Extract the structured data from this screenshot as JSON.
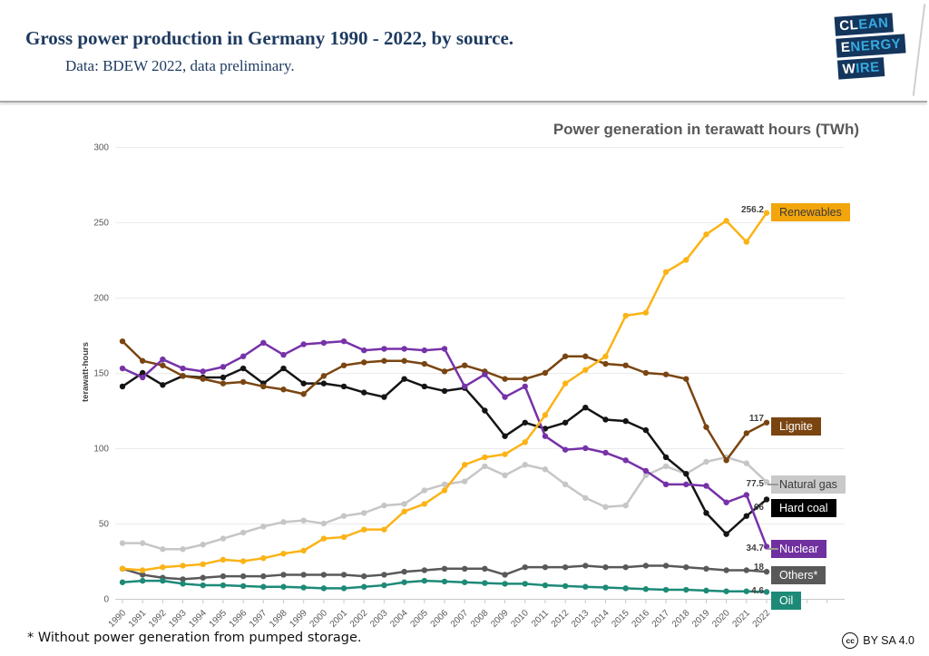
{
  "header": {
    "title": "Gross power production in Germany 1990 - 2022, by source.",
    "subtitle": "Data: BDEW 2022, data preliminary."
  },
  "logo": {
    "bg_color": "#14355c",
    "accent_color": "#35aadf",
    "lines": [
      {
        "strong": "CL",
        "accent": "EAN"
      },
      {
        "strong": "E",
        "accent": "NERGY"
      },
      {
        "strong": "W",
        "accent": "IRE"
      }
    ]
  },
  "chart_data": {
    "type": "line",
    "title": "Power generation in terawatt hours (TWh)",
    "ylabel": "terawatt-hours",
    "ylim": [
      0,
      300
    ],
    "yticks": [
      0,
      50,
      100,
      150,
      200,
      250,
      300
    ],
    "grid": true,
    "legend_position": "right",
    "x": [
      1990,
      1991,
      1992,
      1993,
      1994,
      1995,
      1996,
      1997,
      1998,
      1999,
      2000,
      2001,
      2002,
      2003,
      2004,
      2005,
      2006,
      2007,
      2008,
      2009,
      2010,
      2011,
      2012,
      2013,
      2014,
      2015,
      2016,
      2017,
      2018,
      2019,
      2020,
      2021,
      2022
    ],
    "series": [
      {
        "name": "Renewables",
        "color": "#fbb316",
        "box_color": "#f2a50c",
        "text_color": "#3a3a3a",
        "end_label": "256.2",
        "values": [
          20,
          19,
          21,
          22,
          23,
          26,
          25,
          27,
          30,
          32,
          40,
          41,
          46,
          46,
          58,
          63,
          72,
          89,
          94,
          96,
          104,
          122,
          143,
          152,
          161,
          188,
          190,
          217,
          225,
          242,
          251,
          237,
          256.2
        ]
      },
      {
        "name": "Lignite",
        "color": "#7a4511",
        "box_color": "#7a4511",
        "text_color": "#ffffff",
        "end_label": "117",
        "values": [
          171,
          158,
          155,
          148,
          146,
          143,
          144,
          141,
          139,
          136,
          148,
          155,
          157,
          158,
          158,
          156,
          151,
          155,
          151,
          146,
          146,
          150,
          161,
          161,
          156,
          155,
          150,
          149,
          146,
          114,
          92,
          110,
          117
        ]
      },
      {
        "name": "Natural gas",
        "color": "#c6c6c6",
        "box_color": "#c9c9c9",
        "text_color": "#3a3a3a",
        "end_label": "77.5",
        "values": [
          37,
          37,
          33,
          33,
          36,
          40,
          44,
          48,
          51,
          52,
          50,
          55,
          57,
          62,
          63,
          72,
          76,
          78,
          88,
          82,
          89,
          86,
          76,
          67,
          61,
          62,
          82,
          88,
          83,
          91,
          94,
          90,
          77.5
        ]
      },
      {
        "name": "Hard coal",
        "color": "#141414",
        "box_color": "#000000",
        "text_color": "#ffffff",
        "end_label": "66",
        "values": [
          141,
          150,
          142,
          148,
          147,
          147,
          153,
          143,
          153,
          143,
          143,
          141,
          137,
          134,
          146,
          141,
          138,
          140,
          125,
          108,
          117,
          113,
          117,
          127,
          119,
          118,
          112,
          94,
          83,
          57,
          43,
          55,
          66
        ]
      },
      {
        "name": "Nuclear",
        "color": "#7632a8",
        "box_color": "#7030a0",
        "text_color": "#ffffff",
        "end_label": "34.7",
        "values": [
          153,
          147,
          159,
          153,
          151,
          154,
          161,
          170,
          162,
          169,
          170,
          171,
          165,
          166,
          166,
          165,
          166,
          141,
          149,
          134,
          141,
          108,
          99,
          100,
          97,
          92,
          85,
          76,
          76,
          75,
          64,
          69,
          34.7
        ]
      },
      {
        "name": "Others*",
        "color": "#595959",
        "box_color": "#595959",
        "text_color": "#ffffff",
        "end_label": "18",
        "values": [
          20,
          16,
          14,
          13,
          14,
          15,
          15,
          15,
          16,
          16,
          16,
          16,
          15,
          16,
          18,
          19,
          20,
          20,
          20,
          16,
          21,
          21,
          21,
          22,
          21,
          21,
          22,
          22,
          21,
          20,
          19,
          19,
          18
        ]
      },
      {
        "name": "Oil",
        "color": "#1d8a77",
        "box_color": "#1d8a77",
        "text_color": "#ffffff",
        "end_label": "4.6",
        "values": [
          11,
          12,
          12,
          10,
          9,
          9,
          8.5,
          8,
          8,
          7.5,
          7,
          7,
          8,
          9,
          11,
          12,
          11.5,
          11,
          10.5,
          10,
          10,
          9,
          8.5,
          8,
          7.5,
          7,
          6.5,
          6,
          6,
          5.5,
          5,
          5,
          4.6
        ]
      }
    ]
  },
  "footer": {
    "note": "* Without power generation from pumped storage.",
    "license": "BY SA 4.0",
    "cc": "cc"
  }
}
